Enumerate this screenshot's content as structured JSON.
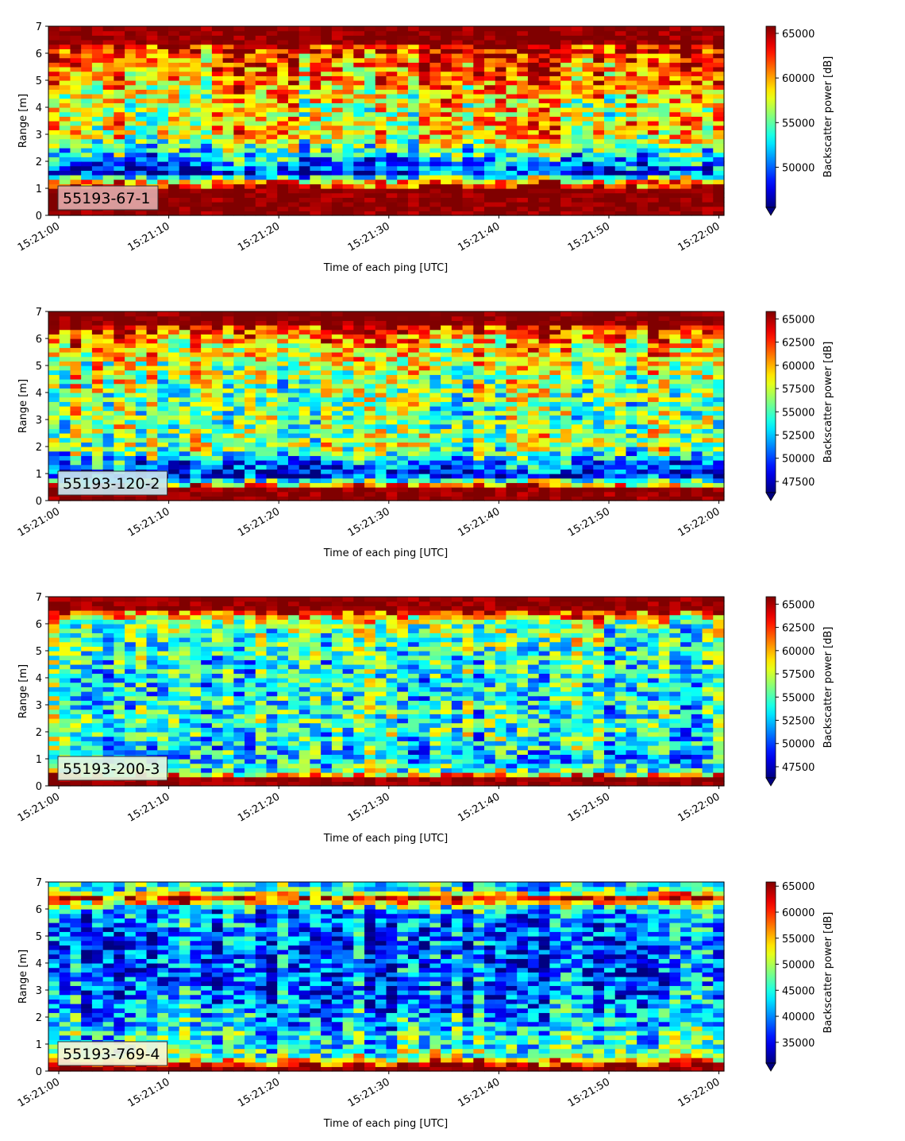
{
  "chart_data": [
    {
      "type": "heatmap",
      "title": "",
      "xlabel": "Time of each ping [UTC]",
      "ylabel": "Range [m]",
      "x_ticks": [
        "15:21:00",
        "15:21:10",
        "15:21:20",
        "15:21:30",
        "15:21:40",
        "15:21:50",
        "15:22:00"
      ],
      "y_ticks": [
        "0",
        "1",
        "2",
        "3",
        "4",
        "5",
        "6",
        "7"
      ],
      "ylim": [
        0,
        7
      ],
      "colormap": "jet",
      "colorbar_label": "Backscatter power [dB]",
      "colorbar_ticks": [
        "50000",
        "55000",
        "60000",
        "65000"
      ],
      "colorbar_range": [
        45500,
        65800
      ],
      "annotation": "55193-67-1",
      "annotation_bg": "#e0a8a8",
      "profile": [
        {
          "range": 0.1,
          "level": 0.98
        },
        {
          "range": 0.5,
          "level": 0.97
        },
        {
          "range": 0.9,
          "level": 0.95
        },
        {
          "range": 1.2,
          "level": 0.8
        },
        {
          "range": 1.6,
          "level": 0.1
        },
        {
          "range": 2.2,
          "level": 0.35
        },
        {
          "range": 3.0,
          "level": 0.65
        },
        {
          "range": 4.0,
          "level": 0.6
        },
        {
          "range": 5.0,
          "level": 0.72
        },
        {
          "range": 6.0,
          "level": 0.82
        },
        {
          "range": 6.6,
          "level": 0.99
        }
      ]
    },
    {
      "type": "heatmap",
      "title": "",
      "xlabel": "Time of each ping [UTC]",
      "ylabel": "Range [m]",
      "x_ticks": [
        "15:21:00",
        "15:21:10",
        "15:21:20",
        "15:21:30",
        "15:21:40",
        "15:21:50",
        "15:22:00"
      ],
      "y_ticks": [
        "0",
        "1",
        "2",
        "3",
        "4",
        "5",
        "6",
        "7"
      ],
      "ylim": [
        0,
        7
      ],
      "colormap": "jet",
      "colorbar_label": "Backscatter power [dB]",
      "colorbar_ticks": [
        "47500",
        "50000",
        "52500",
        "55000",
        "57500",
        "60000",
        "62500",
        "65000"
      ],
      "colorbar_range": [
        46300,
        65800
      ],
      "annotation": "55193-120-2",
      "annotation_bg": "#c8e6f0",
      "profile": [
        {
          "range": 0.1,
          "level": 0.98
        },
        {
          "range": 0.4,
          "level": 0.97
        },
        {
          "range": 0.6,
          "level": 0.7
        },
        {
          "range": 0.9,
          "level": 0.15
        },
        {
          "range": 1.3,
          "level": 0.2
        },
        {
          "range": 2.0,
          "level": 0.55
        },
        {
          "range": 3.0,
          "level": 0.5
        },
        {
          "range": 4.0,
          "level": 0.5
        },
        {
          "range": 5.0,
          "level": 0.58
        },
        {
          "range": 6.0,
          "level": 0.72
        },
        {
          "range": 6.6,
          "level": 0.99
        }
      ]
    },
    {
      "type": "heatmap",
      "title": "",
      "xlabel": "Time of each ping [UTC]",
      "ylabel": "Range [m]",
      "x_ticks": [
        "15:21:00",
        "15:21:10",
        "15:21:20",
        "15:21:30",
        "15:21:40",
        "15:21:50",
        "15:22:00"
      ],
      "y_ticks": [
        "0",
        "1",
        "2",
        "3",
        "4",
        "5",
        "6",
        "7"
      ],
      "ylim": [
        0,
        7
      ],
      "colormap": "jet",
      "colorbar_label": "Backscatter power [dB]",
      "colorbar_ticks": [
        "47500",
        "50000",
        "52500",
        "55000",
        "57500",
        "60000",
        "62500",
        "65000"
      ],
      "colorbar_range": [
        46300,
        65800
      ],
      "annotation": "55193-200-3",
      "annotation_bg": "#e4f4e0",
      "profile": [
        {
          "range": 0.1,
          "level": 0.98
        },
        {
          "range": 0.3,
          "level": 0.95
        },
        {
          "range": 0.5,
          "level": 0.5
        },
        {
          "range": 1.0,
          "level": 0.35
        },
        {
          "range": 2.0,
          "level": 0.45
        },
        {
          "range": 3.0,
          "level": 0.42
        },
        {
          "range": 4.0,
          "level": 0.4
        },
        {
          "range": 5.0,
          "level": 0.45
        },
        {
          "range": 6.0,
          "level": 0.52
        },
        {
          "range": 6.6,
          "level": 0.97
        }
      ]
    },
    {
      "type": "heatmap",
      "title": "",
      "xlabel": "Time of each ping [UTC]",
      "ylabel": "Range [m]",
      "x_ticks": [
        "15:21:00",
        "15:21:10",
        "15:21:20",
        "15:21:30",
        "15:21:40",
        "15:21:50",
        "15:22:00"
      ],
      "y_ticks": [
        "0",
        "1",
        "2",
        "3",
        "4",
        "5",
        "6",
        "7"
      ],
      "ylim": [
        0,
        7
      ],
      "colormap": "jet",
      "colorbar_label": "Backscatter power [dB]",
      "colorbar_ticks": [
        "35000",
        "40000",
        "45000",
        "50000",
        "55000",
        "60000",
        "65000"
      ],
      "colorbar_range": [
        31000,
        65800
      ],
      "annotation": "55193-769-4",
      "annotation_bg": "#f4f4d8",
      "profile": [
        {
          "range": 0.1,
          "level": 0.98
        },
        {
          "range": 0.3,
          "level": 0.9
        },
        {
          "range": 0.5,
          "level": 0.5
        },
        {
          "range": 1.0,
          "level": 0.42
        },
        {
          "range": 2.0,
          "level": 0.3
        },
        {
          "range": 3.0,
          "level": 0.22
        },
        {
          "range": 4.0,
          "level": 0.2
        },
        {
          "range": 5.0,
          "level": 0.22
        },
        {
          "range": 6.0,
          "level": 0.3
        },
        {
          "range": 6.4,
          "level": 0.9
        },
        {
          "range": 6.7,
          "level": 0.4
        }
      ]
    }
  ]
}
